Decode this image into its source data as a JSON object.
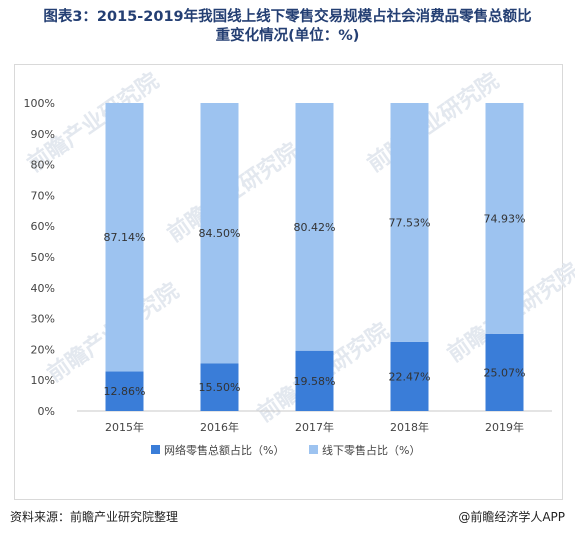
{
  "title": {
    "line1": "图表3：2015-2019年我国线上线下零售交易规模占社会消费品零售总额比",
    "line2": "重变化情况(单位：%)"
  },
  "watermark": "前瞻产业研究院",
  "footer": {
    "source": "资料来源：前瞻产业研究院整理",
    "brand": "@前瞻经济学人APP"
  },
  "colors": {
    "online": "#3a7dd8",
    "offline": "#9dc3f0",
    "title": "#243f73"
  },
  "chart_data": {
    "type": "bar",
    "stacked": true,
    "categories": [
      "2015年",
      "2016年",
      "2017年",
      "2018年",
      "2019年"
    ],
    "series": [
      {
        "name": "网络零售总额占比（%）",
        "values": [
          12.86,
          15.5,
          19.58,
          22.47,
          25.07
        ],
        "labels": [
          "12.86%",
          "15.50%",
          "19.58%",
          "22.47%",
          "25.07%"
        ]
      },
      {
        "name": "线下零售占比（%）",
        "values": [
          87.14,
          84.5,
          80.42,
          77.53,
          74.93
        ],
        "labels": [
          "87.14%",
          "84.50%",
          "80.42%",
          "77.53%",
          "74.93%"
        ]
      }
    ],
    "yticks": [
      "0%",
      "10%",
      "20%",
      "30%",
      "40%",
      "50%",
      "60%",
      "70%",
      "80%",
      "90%",
      "100%"
    ],
    "ylim": [
      0,
      100
    ],
    "legend_position": "bottom",
    "grid": false
  }
}
